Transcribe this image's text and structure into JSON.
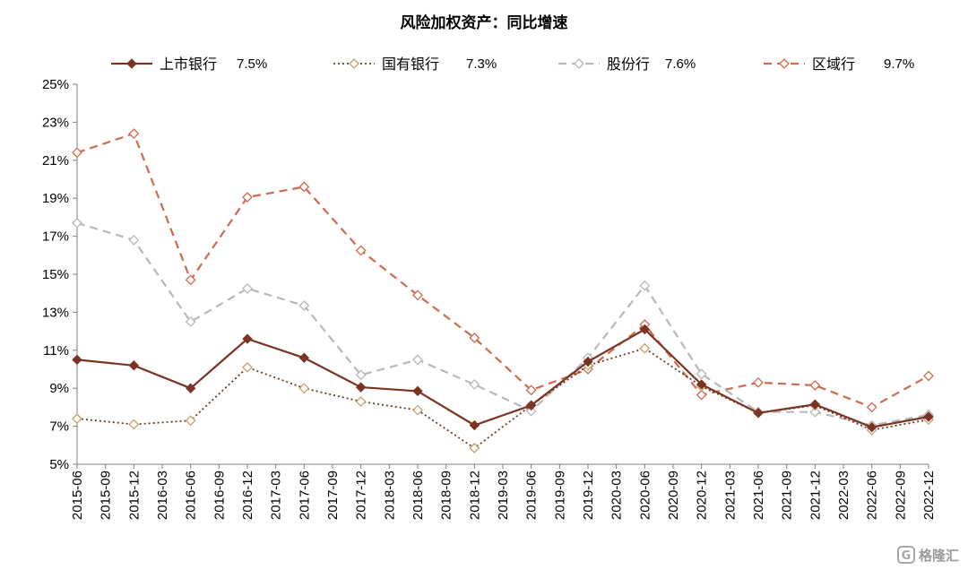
{
  "chart_data": {
    "type": "line",
    "title": "风险加权资产：同比增速",
    "x": [
      "2015-06",
      "2015-09",
      "2015-12",
      "2016-03",
      "2016-06",
      "2016-09",
      "2016-12",
      "2017-03",
      "2017-06",
      "2017-09",
      "2017-12",
      "2018-03",
      "2018-06",
      "2018-09",
      "2018-12",
      "2019-03",
      "2019-06",
      "2019-09",
      "2019-12",
      "2020-03",
      "2020-06",
      "2020-09",
      "2020-12",
      "2021-03",
      "2021-06",
      "2021-09",
      "2021-12",
      "2022-03",
      "2022-06",
      "2022-09",
      "2022-12"
    ],
    "ylim": [
      5,
      25
    ],
    "yticks": [
      5,
      7,
      9,
      11,
      13,
      15,
      17,
      19,
      21,
      23,
      25
    ],
    "ytick_labels": [
      "5%",
      "7%",
      "9%",
      "11%",
      "13%",
      "15%",
      "17%",
      "19%",
      "21%",
      "23%",
      "25%"
    ],
    "legend_position": "top",
    "grid": false,
    "series": [
      {
        "name": "上市银行",
        "latest_label": "7.5%",
        "color": "#7b3423",
        "style": "solid",
        "marker": "diamond-filled",
        "values": [
          10.5,
          null,
          10.2,
          null,
          9.0,
          null,
          11.6,
          null,
          10.6,
          null,
          9.05,
          null,
          8.85,
          null,
          7.05,
          null,
          8.1,
          null,
          10.4,
          null,
          12.1,
          null,
          9.2,
          null,
          7.7,
          null,
          8.15,
          null,
          6.95,
          null,
          7.5
        ]
      },
      {
        "name": "国有银行",
        "latest_label": "7.3%",
        "color": "#6b3b22",
        "style": "dotted",
        "marker": "diamond-open",
        "marker_color": "#c8a070",
        "values": [
          7.4,
          null,
          7.1,
          null,
          7.3,
          null,
          10.1,
          null,
          9.0,
          null,
          8.3,
          null,
          7.85,
          null,
          5.85,
          null,
          8.1,
          null,
          10.2,
          null,
          11.1,
          null,
          9.1,
          null,
          7.7,
          null,
          8.1,
          null,
          6.8,
          null,
          7.35
        ]
      },
      {
        "name": "股份行",
        "latest_label": "7.6%",
        "color": "#b8b8b8",
        "style": "dashed",
        "marker": "diamond-open",
        "marker_color": "#b8b8b8",
        "values": [
          17.7,
          null,
          16.8,
          null,
          12.5,
          null,
          14.25,
          null,
          13.35,
          null,
          9.7,
          null,
          10.5,
          null,
          9.2,
          null,
          7.8,
          null,
          10.6,
          null,
          14.4,
          null,
          9.75,
          null,
          7.75,
          null,
          7.75,
          null,
          7.05,
          null,
          7.6
        ]
      },
      {
        "name": "区域行",
        "latest_label": "9.7%",
        "color": "#d06a4c",
        "style": "dashed",
        "marker": "diamond-open",
        "marker_color": "#d06a4c",
        "values": [
          21.4,
          null,
          22.4,
          null,
          14.7,
          null,
          19.05,
          null,
          19.6,
          null,
          16.25,
          null,
          13.9,
          null,
          11.65,
          null,
          8.9,
          null,
          10.0,
          null,
          12.35,
          null,
          8.65,
          null,
          9.3,
          null,
          9.15,
          null,
          8.0,
          null,
          9.65
        ]
      }
    ]
  },
  "watermark": {
    "text": "格隆汇",
    "icon": "gelonghui-logo-icon"
  }
}
